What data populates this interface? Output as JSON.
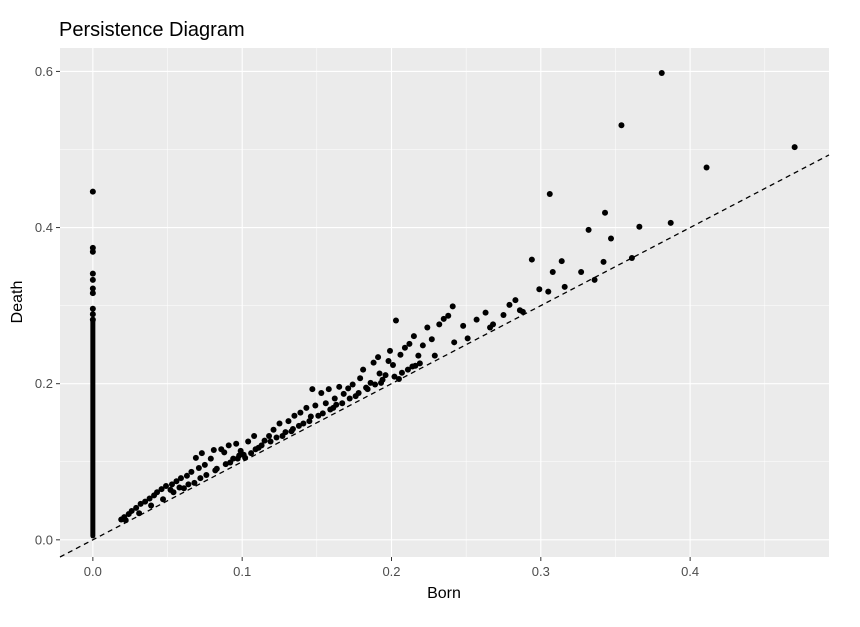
{
  "chart_data": {
    "type": "scatter",
    "title": "Persistence Diagram",
    "xlabel": "Born",
    "ylabel": "Death",
    "xlim": [
      -0.022,
      0.493
    ],
    "ylim": [
      -0.022,
      0.63
    ],
    "x_ticks": [
      0.0,
      0.1,
      0.2,
      0.3,
      0.4
    ],
    "x_tick_labels": [
      "0.0",
      "0.1",
      "0.2",
      "0.3",
      "0.4"
    ],
    "y_ticks": [
      0.0,
      0.2,
      0.4,
      0.6
    ],
    "y_tick_labels": [
      "0.0",
      "0.2",
      "0.4",
      "0.6"
    ],
    "grid": true,
    "diagonal_reference": {
      "style": "dashed",
      "slope": 1,
      "intercept": 0
    },
    "colors": {
      "panel": "#ebebeb",
      "grid": "#ffffff",
      "points": "#000000",
      "tick_text": "#4d4d4d"
    },
    "series": [
      {
        "points": [
          [
            0,
            0.446
          ],
          [
            0,
            0.374
          ],
          [
            0,
            0.369
          ],
          [
            0,
            0.341
          ],
          [
            0,
            0.333
          ],
          [
            0,
            0.322
          ],
          [
            0,
            0.316
          ],
          [
            0,
            0.296
          ],
          [
            0,
            0.289
          ],
          [
            0,
            0.282
          ],
          [
            0.381,
            0.598
          ],
          [
            0.354,
            0.531
          ],
          [
            0.47,
            0.503
          ],
          [
            0.411,
            0.477
          ],
          [
            0.306,
            0.443
          ],
          [
            0.343,
            0.419
          ],
          [
            0.366,
            0.401
          ],
          [
            0.332,
            0.397
          ],
          [
            0.387,
            0.406
          ],
          [
            0.347,
            0.386
          ],
          [
            0.294,
            0.359
          ],
          [
            0.314,
            0.357
          ],
          [
            0.342,
            0.356
          ],
          [
            0.361,
            0.361
          ],
          [
            0.308,
            0.343
          ],
          [
            0.327,
            0.343
          ],
          [
            0.336,
            0.333
          ],
          [
            0.316,
            0.324
          ],
          [
            0.299,
            0.321
          ],
          [
            0.305,
            0.318
          ],
          [
            0.283,
            0.307
          ],
          [
            0.279,
            0.301
          ],
          [
            0.288,
            0.292
          ],
          [
            0.275,
            0.288
          ],
          [
            0.263,
            0.291
          ],
          [
            0.241,
            0.299
          ],
          [
            0.238,
            0.287
          ],
          [
            0.235,
            0.283
          ],
          [
            0.232,
            0.276
          ],
          [
            0.248,
            0.274
          ],
          [
            0.257,
            0.282
          ],
          [
            0.203,
            0.281
          ],
          [
            0.224,
            0.272
          ],
          [
            0.215,
            0.261
          ],
          [
            0.227,
            0.257
          ],
          [
            0.212,
            0.251
          ],
          [
            0.221,
            0.249
          ],
          [
            0.242,
            0.253
          ],
          [
            0.266,
            0.272
          ],
          [
            0.209,
            0.246
          ],
          [
            0.199,
            0.242
          ],
          [
            0.206,
            0.237
          ],
          [
            0.218,
            0.236
          ],
          [
            0.198,
            0.229
          ],
          [
            0.191,
            0.234
          ],
          [
            0.188,
            0.227
          ],
          [
            0.201,
            0.224
          ],
          [
            0.214,
            0.222
          ],
          [
            0.192,
            0.213
          ],
          [
            0.196,
            0.211
          ],
          [
            0.205,
            0.206
          ],
          [
            0.181,
            0.218
          ],
          [
            0.179,
            0.207
          ],
          [
            0.186,
            0.201
          ],
          [
            0.174,
            0.199
          ],
          [
            0.171,
            0.194
          ],
          [
            0.165,
            0.196
          ],
          [
            0.158,
            0.193
          ],
          [
            0.153,
            0.188
          ],
          [
            0.147,
            0.193
          ],
          [
            0.162,
            0.181
          ],
          [
            0.168,
            0.187
          ],
          [
            0.156,
            0.175
          ],
          [
            0.149,
            0.172
          ],
          [
            0.143,
            0.169
          ],
          [
            0.139,
            0.163
          ],
          [
            0.146,
            0.158
          ],
          [
            0.135,
            0.159
          ],
          [
            0.131,
            0.152
          ],
          [
            0.125,
            0.149
          ],
          [
            0.121,
            0.141
          ],
          [
            0.129,
            0.138
          ],
          [
            0.118,
            0.133
          ],
          [
            0.115,
            0.127
          ],
          [
            0.108,
            0.133
          ],
          [
            0.104,
            0.126
          ],
          [
            0.096,
            0.123
          ],
          [
            0.091,
            0.121
          ],
          [
            0.086,
            0.116
          ],
          [
            0.081,
            0.115
          ],
          [
            0.073,
            0.111
          ],
          [
            0.069,
            0.105
          ],
          [
            0.079,
            0.104
          ],
          [
            0.088,
            0.112
          ],
          [
            0.094,
            0.104
          ],
          [
            0.098,
            0.108
          ],
          [
            0.102,
            0.105
          ],
          [
            0.106,
            0.111
          ],
          [
            0.111,
            0.118
          ],
          [
            0.099,
            0.114
          ],
          [
            0.075,
            0.096
          ],
          [
            0.071,
            0.092
          ],
          [
            0.066,
            0.087
          ],
          [
            0.063,
            0.082
          ],
          [
            0.059,
            0.079
          ],
          [
            0.056,
            0.075
          ],
          [
            0.053,
            0.071
          ],
          [
            0.049,
            0.069
          ],
          [
            0.046,
            0.065
          ],
          [
            0.043,
            0.061
          ],
          [
            0.041,
            0.057
          ],
          [
            0.038,
            0.053
          ],
          [
            0.035,
            0.049
          ],
          [
            0.032,
            0.046
          ],
          [
            0.029,
            0.041
          ],
          [
            0.026,
            0.037
          ],
          [
            0.024,
            0.033
          ],
          [
            0.021,
            0.029
          ],
          [
            0.019,
            0.026
          ],
          [
            0.022,
            0.025
          ],
          [
            0.031,
            0.034
          ],
          [
            0.039,
            0.044
          ],
          [
            0.047,
            0.052
          ],
          [
            0.054,
            0.061
          ],
          [
            0.061,
            0.066
          ],
          [
            0.068,
            0.073
          ],
          [
            0.076,
            0.083
          ],
          [
            0.083,
            0.091
          ],
          [
            0.089,
            0.097
          ],
          [
            0.097,
            0.104
          ],
          [
            0.109,
            0.116
          ],
          [
            0.119,
            0.126
          ],
          [
            0.127,
            0.133
          ],
          [
            0.134,
            0.142
          ],
          [
            0.141,
            0.149
          ],
          [
            0.151,
            0.159
          ],
          [
            0.159,
            0.167
          ],
          [
            0.167,
            0.175
          ],
          [
            0.176,
            0.184
          ],
          [
            0.184,
            0.193
          ],
          [
            0.193,
            0.201
          ],
          [
            0.202,
            0.209
          ],
          [
            0.211,
            0.218
          ],
          [
            0.219,
            0.226
          ],
          [
            0.229,
            0.236
          ],
          [
            0.251,
            0.258
          ],
          [
            0.268,
            0.276
          ],
          [
            0.286,
            0.294
          ],
          [
            0.052,
            0.064
          ],
          [
            0.058,
            0.067
          ],
          [
            0.064,
            0.071
          ],
          [
            0.072,
            0.079
          ],
          [
            0.082,
            0.089
          ],
          [
            0.092,
            0.099
          ],
          [
            0.101,
            0.109
          ],
          [
            0.113,
            0.121
          ],
          [
            0.123,
            0.131
          ],
          [
            0.133,
            0.139
          ],
          [
            0.138,
            0.146
          ],
          [
            0.145,
            0.152
          ],
          [
            0.154,
            0.162
          ],
          [
            0.161,
            0.169
          ],
          [
            0.163,
            0.173
          ],
          [
            0.172,
            0.181
          ],
          [
            0.178,
            0.188
          ],
          [
            0.183,
            0.195
          ],
          [
            0.189,
            0.199
          ],
          [
            0.194,
            0.205
          ],
          [
            0.207,
            0.214
          ],
          [
            0.216,
            0.223
          ]
        ]
      },
      {
        "x": 0,
        "y_range": [
          0.005,
          0.28
        ]
      }
    ]
  }
}
